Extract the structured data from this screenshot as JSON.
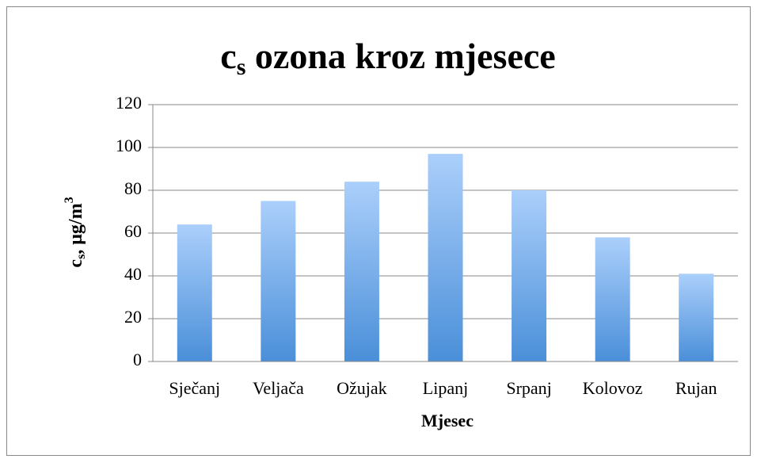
{
  "chart_data": {
    "type": "bar",
    "title": [
      "c",
      "s",
      " ozona kroz mjesece"
    ],
    "x_label": "Mjesec",
    "y_label": [
      "c",
      "s",
      ", μg/m",
      "3"
    ],
    "categories": [
      "Sječanj",
      "Veljača",
      "Ožujak",
      "Lipanj",
      "Srpanj",
      "Kolovoz",
      "Rujan"
    ],
    "values": [
      64,
      75,
      84,
      97,
      80,
      58,
      41
    ],
    "colors": [
      "#abcffb",
      "#4a8fd9"
    ],
    "ylim": [
      0,
      120
    ],
    "yticks": [
      0,
      20,
      40,
      60,
      80,
      100,
      120
    ],
    "grid": true
  }
}
